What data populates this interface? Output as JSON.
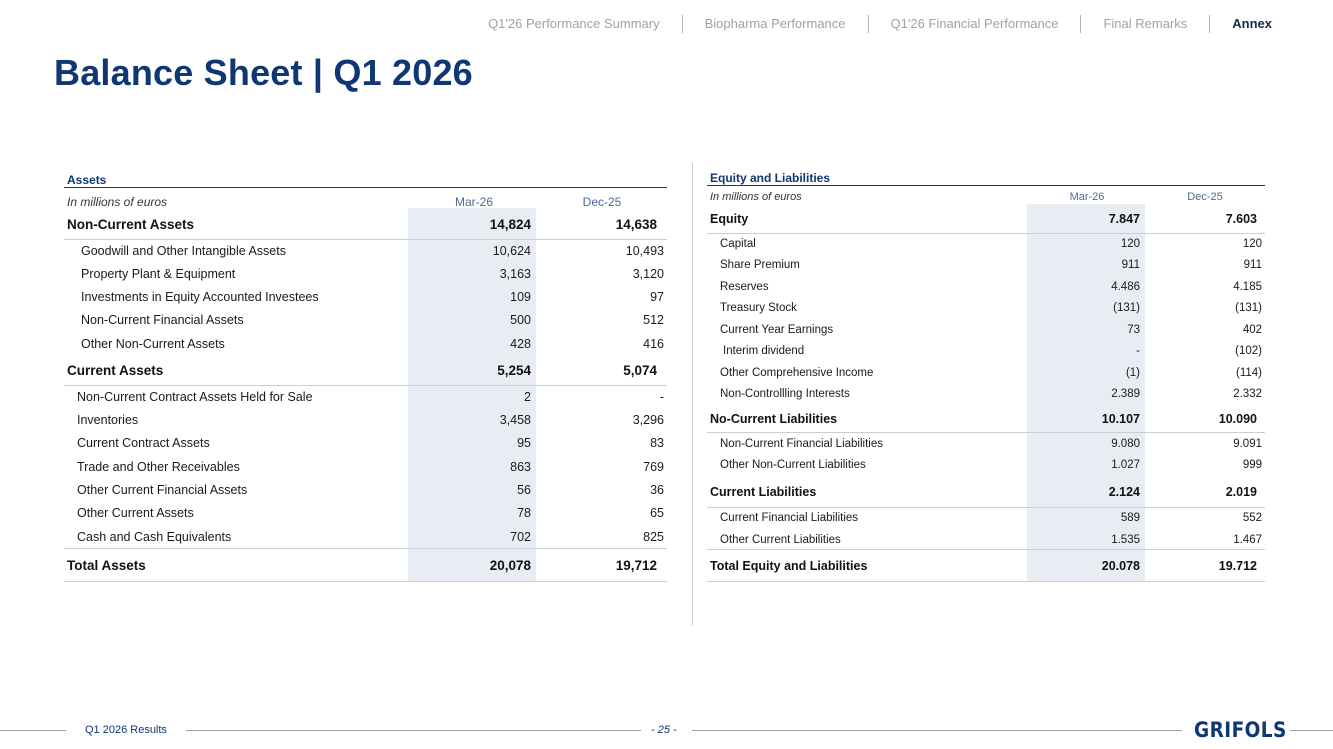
{
  "nav": {
    "items": [
      "Q1'26 Performance Summary",
      "Biopharma Performance",
      "Q1'26 Financial Performance",
      "Final Remarks",
      "Annex"
    ]
  },
  "title": "Balance Sheet | Q1 2026",
  "assets": {
    "heading": "Assets",
    "unit": "In millions of euros",
    "col1": "Mar-26",
    "col2": "Dec-25",
    "rows": [
      {
        "label": "Non-Current Assets",
        "v1": "14,824",
        "v2": "14,638"
      },
      {
        "label": "Goodwill and Other Intangible Assets",
        "v1": "10,624",
        "v2": "10,493"
      },
      {
        "label": "Property Plant & Equipment",
        "v1": "3,163",
        "v2": "3,120"
      },
      {
        "label": "Investments in Equity Accounted Investees",
        "v1": "109",
        "v2": "97"
      },
      {
        "label": "Non-Current Financial Assets",
        "v1": "500",
        "v2": "512"
      },
      {
        "label": "Other Non-Current Assets",
        "v1": "428",
        "v2": "416"
      },
      {
        "label": "Current Assets",
        "v1": "5,254",
        "v2": "5,074"
      },
      {
        "label": "Non-Current Contract Assets Held for Sale",
        "v1": "2",
        "v2": "-"
      },
      {
        "label": "Inventories",
        "v1": "3,458",
        "v2": "3,296"
      },
      {
        "label": "Current Contract Assets",
        "v1": "95",
        "v2": "83"
      },
      {
        "label": "Trade and Other Receivables",
        "v1": "863",
        "v2": "769"
      },
      {
        "label": "Other Current Financial Assets",
        "v1": "56",
        "v2": "36"
      },
      {
        "label": "Other Current Assets",
        "v1": "78",
        "v2": "65"
      },
      {
        "label": "Cash and Cash Equivalents",
        "v1": "702",
        "v2": "825"
      },
      {
        "label": "Total Assets",
        "v1": "20,078",
        "v2": "19,712"
      }
    ]
  },
  "liabilities": {
    "heading": "Equity and Liabilities",
    "unit": "In millions of euros",
    "col1": "Mar-26",
    "col2": "Dec-25",
    "rows": [
      {
        "label": "Equity",
        "v1": "7.847",
        "v2": "7.603"
      },
      {
        "label": "Capital",
        "v1": "120",
        "v2": "120"
      },
      {
        "label": "Share Premium",
        "v1": "911",
        "v2": "911"
      },
      {
        "label": "Reserves",
        "v1": "4.486",
        "v2": "4.185"
      },
      {
        "label": "Treasury Stock",
        "v1": "(131)",
        "v2": "(131)"
      },
      {
        "label": "Current Year Earnings",
        "v1": "73",
        "v2": "402"
      },
      {
        "label": "Interim dividend",
        "v1": "-",
        "v2": "(102)"
      },
      {
        "label": "Other Comprehensive Income",
        "v1": "(1)",
        "v2": "(114)"
      },
      {
        "label": "Non-Controllling Interests",
        "v1": "2.389",
        "v2": "2.332"
      },
      {
        "label": "No-Current Liabilities",
        "v1": "10.107",
        "v2": "10.090"
      },
      {
        "label": "Non-Current Financial Liabilities",
        "v1": "9.080",
        "v2": "9.091"
      },
      {
        "label": "Other Non-Current Liabilities",
        "v1": "1.027",
        "v2": "999"
      },
      {
        "label": "Current Liabilities",
        "v1": "2.124",
        "v2": "2.019"
      },
      {
        "label": "Current Financial Liabilities",
        "v1": "589",
        "v2": "552"
      },
      {
        "label": "Other Current Liabilities",
        "v1": "1.535",
        "v2": "1.467"
      },
      {
        "label": "Total Equity and Liabilities",
        "v1": "20.078",
        "v2": "19.712"
      }
    ]
  },
  "footer": {
    "left": "Q1 2026 Results",
    "page": "- 25 -",
    "logo": "GRIFOLS"
  }
}
